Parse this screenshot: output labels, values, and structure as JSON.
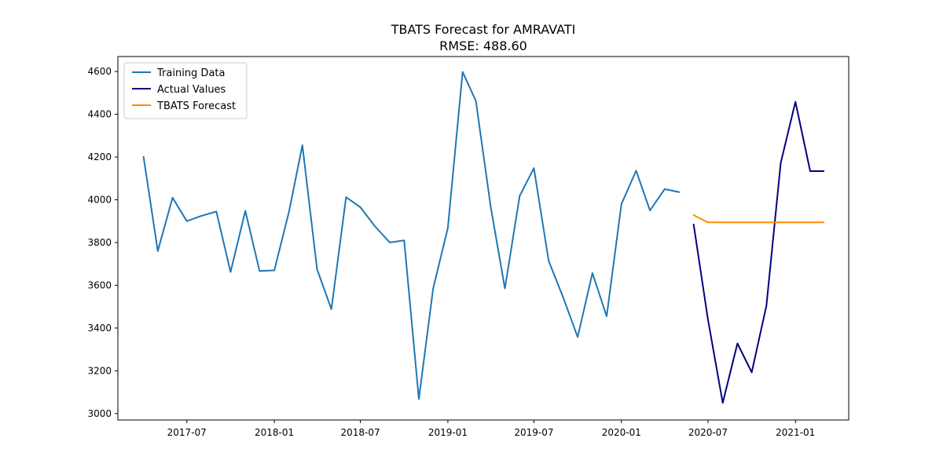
{
  "chart_data": {
    "type": "line",
    "title": "TBATS Forecast for AMRAVATI",
    "subtitle": "RMSE: 488.60",
    "xlabel": "",
    "ylabel": "",
    "xlim": [
      "2017-02-06",
      "2021-04-23"
    ],
    "ylim": [
      2970,
      4670
    ],
    "x_ticks": [
      "2017-07",
      "2018-01",
      "2018-07",
      "2019-01",
      "2019-07",
      "2020-01",
      "2020-07",
      "2021-01"
    ],
    "y_ticks": [
      3000,
      3200,
      3400,
      3600,
      3800,
      4000,
      4200,
      4400,
      4600
    ],
    "grid": false,
    "legend_position": "top-left",
    "series": [
      {
        "name": "Training Data",
        "color": "#1f77b4",
        "x": [
          "2017-04",
          "2017-05",
          "2017-06",
          "2017-07",
          "2017-08",
          "2017-09",
          "2017-10",
          "2017-11",
          "2017-12",
          "2018-01",
          "2018-02",
          "2018-03",
          "2018-04",
          "2018-05",
          "2018-06",
          "2018-07",
          "2018-08",
          "2018-09",
          "2018-10",
          "2018-11",
          "2018-12",
          "2019-01",
          "2019-02",
          "2019-03",
          "2019-04",
          "2019-05",
          "2019-06",
          "2019-07",
          "2019-08",
          "2019-09",
          "2019-10",
          "2019-11",
          "2019-12",
          "2020-01",
          "2020-02",
          "2020-03",
          "2020-04",
          "2020-05"
        ],
        "values": [
          4200,
          3760,
          4010,
          3900,
          3925,
          3945,
          3662,
          3948,
          3667,
          3670,
          3945,
          4255,
          3675,
          3488,
          4012,
          3965,
          3875,
          3800,
          3810,
          3068,
          3585,
          3868,
          4598,
          4462,
          3968,
          3585,
          4018,
          4148,
          3714,
          3540,
          3358,
          3657,
          3455,
          3980,
          4136,
          3950,
          4050,
          4036
        ]
      },
      {
        "name": "Actual Values",
        "color": "#000080",
        "x": [
          "2020-06",
          "2020-07",
          "2020-08",
          "2020-09",
          "2020-10",
          "2020-11",
          "2020-12",
          "2021-01",
          "2021-02",
          "2021-03"
        ],
        "values": [
          3884,
          3440,
          3050,
          3328,
          3193,
          3505,
          4172,
          4458,
          4134,
          4134
        ]
      },
      {
        "name": "TBATS Forecast",
        "color": "#ff8c00",
        "x": [
          "2020-06",
          "2020-07",
          "2020-08",
          "2020-09",
          "2020-10",
          "2020-11",
          "2020-12",
          "2021-01",
          "2021-02",
          "2021-03"
        ],
        "values": [
          3928,
          3894,
          3894,
          3894,
          3894,
          3894,
          3894,
          3894,
          3894,
          3894
        ]
      }
    ]
  }
}
